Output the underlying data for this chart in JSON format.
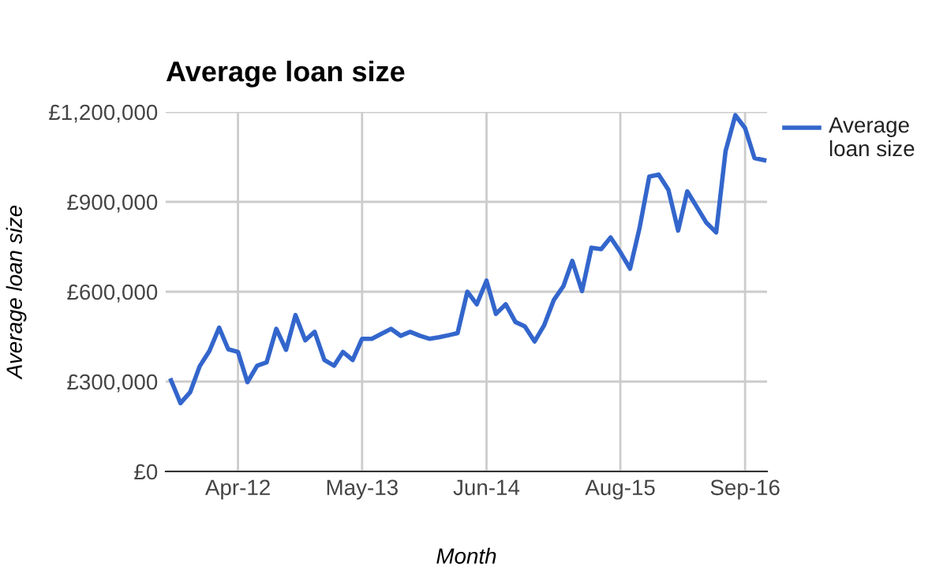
{
  "chart_data": {
    "type": "line",
    "title": "Average loan size",
    "xlabel": "Month",
    "ylabel": "Average loan size",
    "x": [
      "2011-09",
      "2011-10",
      "2011-11",
      "2011-12",
      "2012-01",
      "2012-02",
      "2012-03",
      "2012-04",
      "2012-05",
      "2012-06",
      "2012-07",
      "2012-08",
      "2012-09",
      "2012-10",
      "2012-11",
      "2012-12",
      "2013-01",
      "2013-02",
      "2013-03",
      "2013-04",
      "2013-05",
      "2013-06",
      "2013-07",
      "2013-08",
      "2013-09",
      "2013-10",
      "2013-11",
      "2013-12",
      "2014-01",
      "2014-02",
      "2014-03",
      "2014-04",
      "2014-05",
      "2014-06",
      "2014-07",
      "2014-08",
      "2014-09",
      "2014-10",
      "2014-11",
      "2014-12",
      "2015-01",
      "2015-02",
      "2015-03",
      "2015-04",
      "2015-05",
      "2015-06",
      "2015-07",
      "2015-08",
      "2015-09",
      "2015-10",
      "2015-11",
      "2015-12",
      "2016-01",
      "2016-02",
      "2016-03",
      "2016-04",
      "2016-05",
      "2016-06",
      "2016-07",
      "2016-08",
      "2016-09",
      "2016-10",
      "2016-11"
    ],
    "series": [
      {
        "name": "Average loan size",
        "color": "#3366cc",
        "values": [
          304000,
          228000,
          265000,
          351000,
          402000,
          480000,
          408000,
          399000,
          298000,
          353000,
          364000,
          476000,
          406000,
          522000,
          438000,
          466000,
          372000,
          353000,
          399000,
          372000,
          443000,
          443000,
          459000,
          476000,
          453000,
          466000,
          453000,
          443000,
          448000,
          455000,
          462000,
          600000,
          558000,
          637000,
          526000,
          558000,
          499000,
          484000,
          434000,
          487000,
          572000,
          619000,
          703000,
          602000,
          747000,
          742000,
          781000,
          732000,
          677000,
          812000,
          984000,
          991000,
          940000,
          804000,
          935000,
          882000,
          830000,
          798000,
          1070000,
          1189000,
          1146000,
          1046000,
          1039000
        ]
      }
    ],
    "xlim": [
      "2011-08-15",
      "2016-11-10"
    ],
    "xticks": [
      {
        "value": "2012-04-01",
        "label": "Apr-12"
      },
      {
        "value": "2013-05-01",
        "label": "May-13"
      },
      {
        "value": "2014-06-01",
        "label": "Jun-14"
      },
      {
        "value": "2015-08-01",
        "label": "Aug-15"
      },
      {
        "value": "2016-09-01",
        "label": "Sep-16"
      }
    ],
    "ylim": [
      0,
      1200000
    ],
    "yticks": [
      {
        "value": 0,
        "label": "£0"
      },
      {
        "value": 300000,
        "label": "£300,000"
      },
      {
        "value": 600000,
        "label": "£600,000"
      },
      {
        "value": 900000,
        "label": "£900,000"
      },
      {
        "value": 1200000,
        "label": "£1,200,000"
      }
    ],
    "grid": true,
    "legend": "right",
    "marker": "none",
    "line_style": "solid"
  }
}
